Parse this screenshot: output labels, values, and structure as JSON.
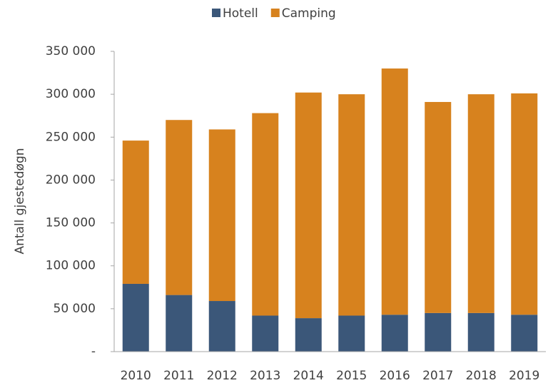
{
  "chart_data": {
    "type": "stacked_bar",
    "y_label": "Antall gjestedøgn",
    "categories": [
      "2010",
      "2011",
      "2012",
      "2013",
      "2014",
      "2015",
      "2016",
      "2017",
      "2018",
      "2019"
    ],
    "series": [
      {
        "name": "Hotell",
        "color": "#3b5779",
        "values": [
          79000,
          66000,
          59000,
          42000,
          39000,
          42000,
          43000,
          45000,
          45000,
          43000
        ]
      },
      {
        "name": "Camping",
        "color": "#d7821e",
        "values": [
          167000,
          204000,
          200000,
          236000,
          263000,
          258000,
          287000,
          246000,
          255000,
          258000
        ]
      }
    ],
    "ylim": [
      0,
      350000
    ],
    "yticks": [
      {
        "value": 0,
        "label": "-"
      },
      {
        "value": 50000,
        "label": "50 000"
      },
      {
        "value": 100000,
        "label": "100 000"
      },
      {
        "value": 150000,
        "label": "150 000"
      },
      {
        "value": 200000,
        "label": "200 000"
      },
      {
        "value": 250000,
        "label": "250 000"
      },
      {
        "value": 300000,
        "label": "300 000"
      },
      {
        "value": 350000,
        "label": "350 000"
      }
    ],
    "legend": "top"
  }
}
